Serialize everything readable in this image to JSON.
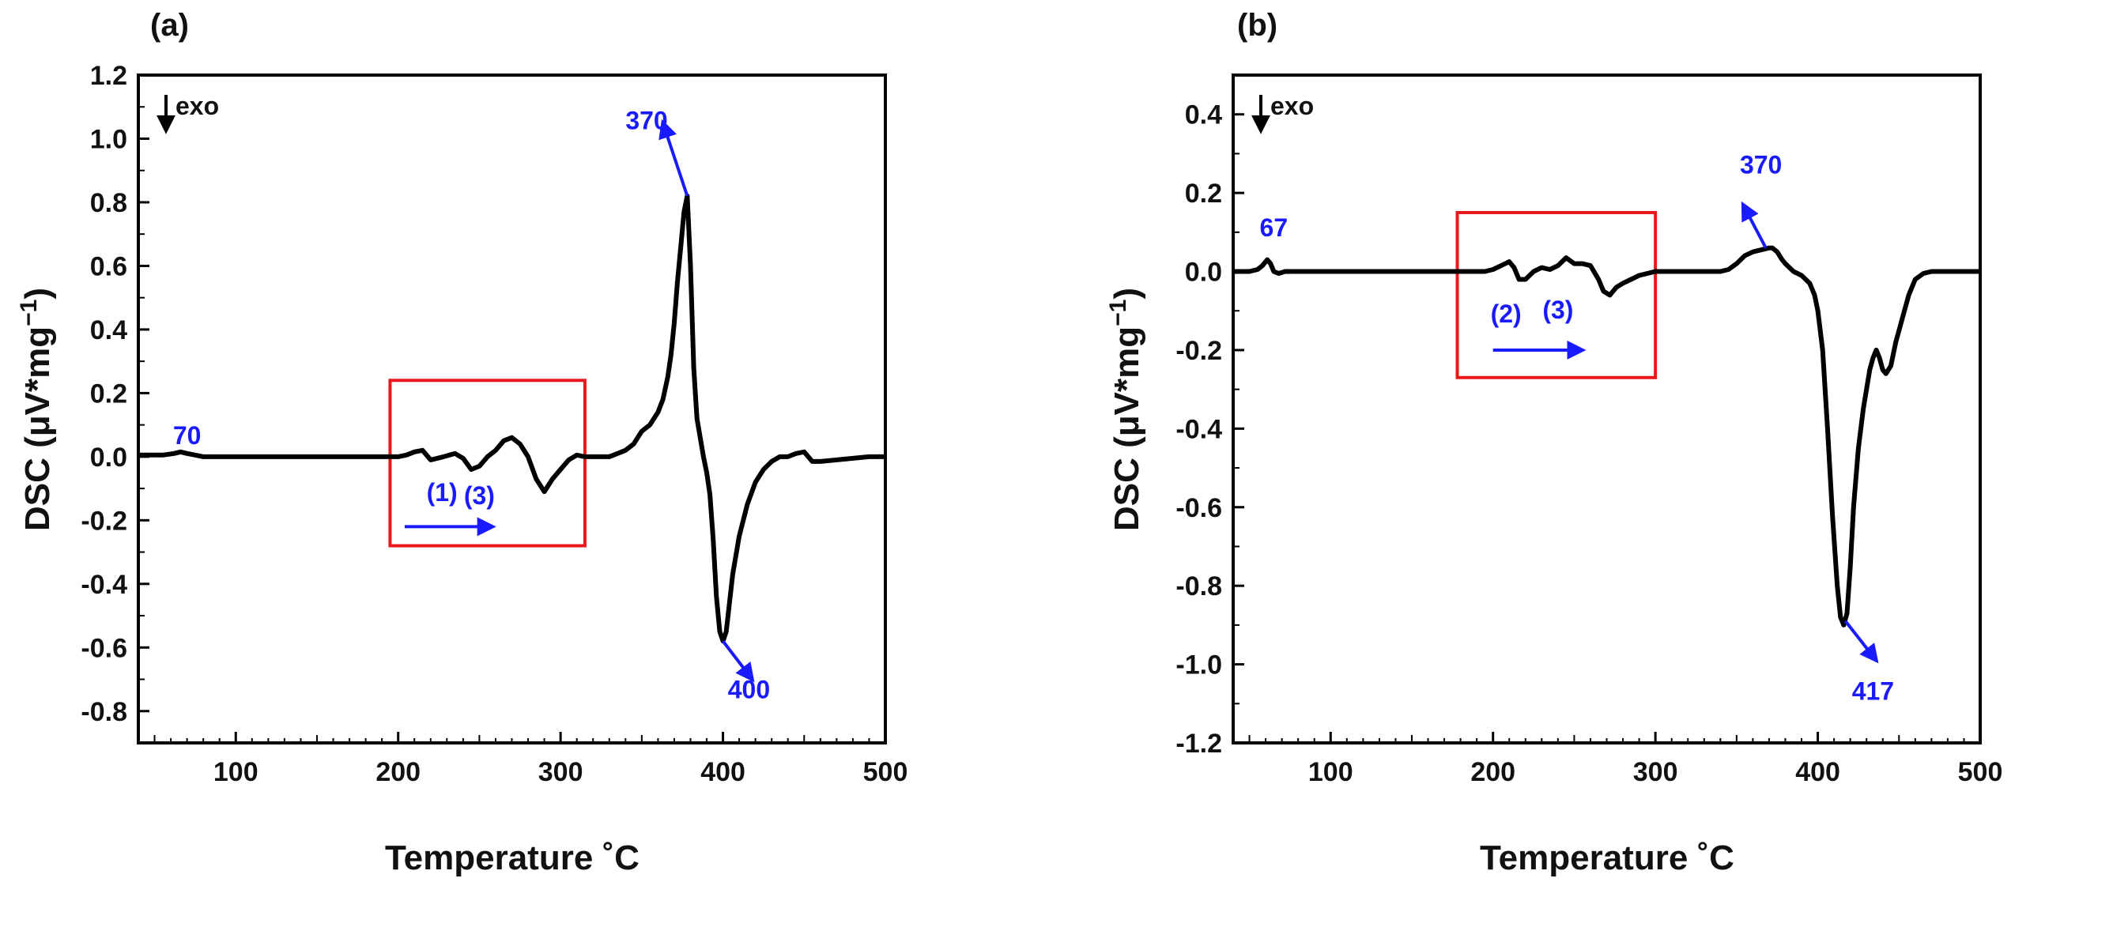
{
  "figure": {
    "y_unit_label": "DSC (μV*mg",
    "y_unit_exp": "−1",
    "y_unit_close": ")",
    "colors": {
      "curve": "#000000",
      "annotation": "#1a1aff",
      "box": "#e8191d"
    }
  },
  "chart_data": [
    {
      "type": "line",
      "panel_label": "(a)",
      "xlabel": "Temperature ˚C",
      "ylabel": "DSC (μV*mg⁻¹)",
      "xlim": [
        40,
        500
      ],
      "ylim": [
        -0.9,
        1.2
      ],
      "xticks": [
        100,
        200,
        300,
        400,
        500
      ],
      "yticks": [
        1.2,
        1.0,
        0.8,
        0.6,
        0.4,
        0.2,
        0.0,
        -0.2,
        -0.4,
        -0.6,
        -0.8
      ],
      "exo_label": "exo",
      "series": [
        {
          "name": "DSC",
          "x": [
            40,
            55,
            62,
            66,
            70,
            75,
            80,
            100,
            120,
            140,
            160,
            180,
            200,
            205,
            210,
            215,
            220,
            228,
            235,
            240,
            245,
            250,
            255,
            260,
            265,
            270,
            275,
            280,
            285,
            290,
            295,
            300,
            305,
            310,
            315,
            320,
            330,
            340,
            345,
            350,
            355,
            360,
            363,
            366,
            368,
            370,
            372,
            374,
            376,
            378,
            380,
            382,
            384,
            386,
            388,
            390,
            392,
            394,
            396,
            398,
            400,
            402,
            404,
            406,
            410,
            415,
            420,
            425,
            430,
            435,
            440,
            445,
            450,
            455,
            460,
            470,
            480,
            490,
            500
          ],
          "y": [
            0.005,
            0.005,
            0.01,
            0.015,
            0.01,
            0.005,
            0.0,
            0.0,
            0.0,
            0.0,
            0.0,
            0.0,
            0.0,
            0.005,
            0.015,
            0.02,
            -0.01,
            0.0,
            0.01,
            -0.005,
            -0.04,
            -0.03,
            0.0,
            0.02,
            0.05,
            0.06,
            0.04,
            0.0,
            -0.07,
            -0.11,
            -0.07,
            -0.04,
            -0.01,
            0.005,
            0.0,
            0.0,
            0.0,
            0.02,
            0.04,
            0.08,
            0.1,
            0.14,
            0.18,
            0.25,
            0.32,
            0.42,
            0.55,
            0.66,
            0.77,
            0.82,
            0.6,
            0.28,
            0.12,
            0.06,
            0.0,
            -0.05,
            -0.12,
            -0.26,
            -0.44,
            -0.55,
            -0.58,
            -0.55,
            -0.46,
            -0.37,
            -0.25,
            -0.15,
            -0.08,
            -0.04,
            -0.015,
            0.0,
            0.0,
            0.01,
            0.015,
            -0.015,
            -0.015,
            -0.01,
            -0.005,
            0.0,
            0.0
          ]
        }
      ],
      "annotations": [
        {
          "text": "70",
          "x": 70,
          "y": 0.04
        },
        {
          "text": "370",
          "x": 353,
          "y": 1.03,
          "arrow_from": [
            378,
            0.82
          ],
          "arrow_to": [
            363,
            1.05
          ]
        },
        {
          "text": "400",
          "x": 416,
          "y": -0.76,
          "arrow_from": [
            400,
            -0.58
          ],
          "arrow_to": [
            418,
            -0.7
          ]
        },
        {
          "text": "(1)",
          "x": 227,
          "y": -0.14
        },
        {
          "text": "(3)",
          "x": 250,
          "y": -0.15
        }
      ],
      "direction_arrow": {
        "from": [
          204,
          -0.22
        ],
        "to": [
          258,
          -0.22
        ]
      },
      "highlight_box": {
        "x": [
          195,
          315
        ],
        "y": [
          -0.28,
          0.24
        ]
      }
    },
    {
      "type": "line",
      "panel_label": "(b)",
      "xlabel": "Temperature ˚C",
      "ylabel": "DSC (μV*mg⁻¹)",
      "xlim": [
        40,
        500
      ],
      "ylim": [
        -1.2,
        0.5
      ],
      "xticks": [
        100,
        200,
        300,
        400,
        500
      ],
      "yticks": [
        0.4,
        0.2,
        0.0,
        -0.2,
        -0.4,
        -0.6,
        -0.8,
        -1.0,
        -1.2
      ],
      "exo_label": "exo",
      "series": [
        {
          "name": "DSC",
          "x": [
            40,
            50,
            55,
            58,
            61,
            63,
            65,
            68,
            72,
            80,
            100,
            120,
            140,
            160,
            180,
            195,
            200,
            205,
            210,
            213,
            216,
            220,
            225,
            230,
            235,
            240,
            245,
            250,
            255,
            260,
            265,
            268,
            272,
            276,
            280,
            285,
            290,
            300,
            320,
            340,
            345,
            350,
            355,
            360,
            365,
            370,
            372,
            375,
            378,
            380,
            385,
            390,
            395,
            398,
            400,
            403,
            406,
            409,
            412,
            414,
            416,
            418,
            420,
            422,
            425,
            428,
            430,
            432,
            434,
            436,
            438,
            440,
            442,
            445,
            448,
            452,
            456,
            460,
            465,
            470,
            480,
            490,
            500
          ],
          "y": [
            0.0,
            0.0,
            0.005,
            0.015,
            0.03,
            0.02,
            0.0,
            -0.005,
            0.0,
            0.0,
            0.0,
            0.0,
            0.0,
            0.0,
            0.0,
            0.0,
            0.005,
            0.015,
            0.025,
            0.01,
            -0.02,
            -0.02,
            0.0,
            0.01,
            0.005,
            0.015,
            0.035,
            0.02,
            0.02,
            0.015,
            -0.02,
            -0.05,
            -0.06,
            -0.04,
            -0.03,
            -0.02,
            -0.01,
            0.0,
            0.0,
            0.0,
            0.005,
            0.02,
            0.04,
            0.05,
            0.055,
            0.06,
            0.06,
            0.05,
            0.03,
            0.02,
            0.0,
            -0.01,
            -0.03,
            -0.06,
            -0.1,
            -0.2,
            -0.4,
            -0.62,
            -0.8,
            -0.88,
            -0.9,
            -0.87,
            -0.75,
            -0.6,
            -0.45,
            -0.35,
            -0.3,
            -0.25,
            -0.22,
            -0.2,
            -0.22,
            -0.25,
            -0.26,
            -0.24,
            -0.18,
            -0.12,
            -0.06,
            -0.02,
            -0.005,
            0.0,
            0.0,
            0.0,
            0.0
          ]
        }
      ],
      "annotations": [
        {
          "text": "67",
          "x": 65,
          "y": 0.09
        },
        {
          "text": "370",
          "x": 365,
          "y": 0.25,
          "arrow_from": [
            368,
            0.06
          ],
          "arrow_to": [
            354,
            0.17
          ]
        },
        {
          "text": "417",
          "x": 434,
          "y": -1.09,
          "arrow_from": [
            417,
            -0.89
          ],
          "arrow_to": [
            436,
            -0.99
          ]
        },
        {
          "text": "(2)",
          "x": 208,
          "y": -0.13
        },
        {
          "text": "(3)",
          "x": 240,
          "y": -0.12
        }
      ],
      "direction_arrow": {
        "from": [
          200,
          -0.2
        ],
        "to": [
          255,
          -0.2
        ]
      },
      "highlight_box": {
        "x": [
          178,
          300
        ],
        "y": [
          -0.27,
          0.15
        ]
      }
    }
  ]
}
